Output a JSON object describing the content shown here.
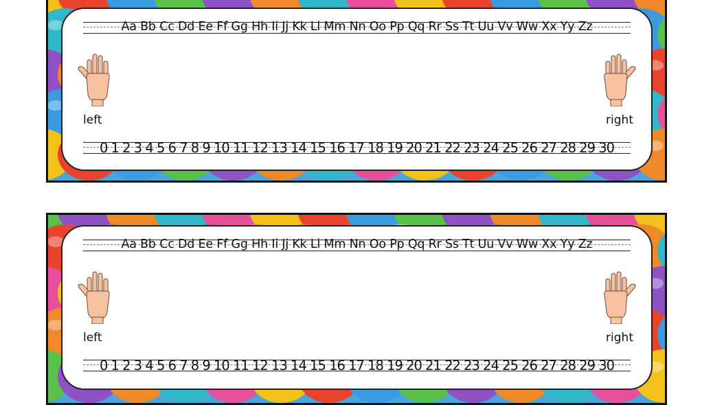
{
  "strips": [
    {
      "alphabet": "Aa Bb Cc Dd Ee Ff Gg Hh Ii Jj Kk Ll Mm Nn Oo Pp Qq Rr Ss Tt Uu Vv Ww Xx Yy Zz",
      "left_label": "left",
      "right_label": "right",
      "numbers": "0 1 2 3 4 5 6 7 8 9 10 11 12 13 14 15 16 17 18 19 20 21 22 23 24 25 26 27 28 29 30"
    },
    {
      "alphabet": "Aa Bb Cc Dd Ee Ff Gg Hh Ii Jj Kk Ll Mm Nn Oo Pp Qq Rr Ss Tt Uu Vv Ww Xx Yy Zz",
      "left_label": "left",
      "right_label": "right",
      "numbers": "0 1 2 3 4 5 6 7 8 9 10 11 12 13 14 15 16 17 18 19 20 21 22 23 24 25 26 27 28 29 30"
    }
  ],
  "icons": {
    "left": "left-hand-icon",
    "right": "right-hand-icon"
  },
  "colors": {
    "bubble_palette": [
      "#f2c21b",
      "#e8432c",
      "#3a9be0",
      "#5bc04a",
      "#8e52c4",
      "#f0892a",
      "#31b7c9",
      "#e84f9a"
    ],
    "skin": "#f6c29f",
    "skin_outline": "#6b4a3a",
    "border": "#111111"
  }
}
